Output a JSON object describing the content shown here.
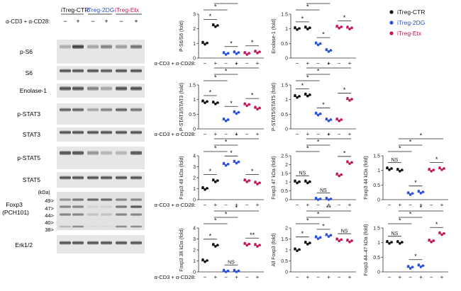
{
  "blot": {
    "groups": [
      {
        "label": "iTreg-CTR",
        "color": "#111111"
      },
      {
        "label": "iTreg-2DG",
        "color": "#2a4fd8"
      },
      {
        "label": "iTreg-Etx",
        "color": "#c2185b"
      }
    ],
    "stim_label": "α-CD3 + α-CD28:",
    "signs": [
      "−",
      "+",
      "−",
      "+",
      "−",
      "+"
    ],
    "bands": [
      "p-S6",
      "S6",
      "Enolase-1",
      "p-STAT3",
      "STAT3",
      "p-STAT5",
      "STAT5",
      "Foxp3 (PCH101)",
      "Erk1/2"
    ],
    "foxp3_sub": "(PCH101)",
    "kda_label": "(kDa)",
    "kda_marks": [
      "49>",
      "47>",
      "44>",
      "40>",
      "38>"
    ]
  },
  "legend": {
    "entries": [
      {
        "label": "iTreg-CTR",
        "color": "#111111"
      },
      {
        "label": "iTreg-2DG",
        "color": "#2a4fd8"
      },
      {
        "label": "iTreg-Etx",
        "color": "#c2185b"
      }
    ]
  },
  "chart_data": [
    {
      "type": "scatter",
      "ylabel": "P-S6/S6 (fold)",
      "ylim": [
        0,
        3
      ],
      "yticks": [
        0,
        1,
        2,
        3
      ],
      "xlabel": "α-CD3 + α-CD28:",
      "x_signs": [
        "−",
        "+",
        "−",
        "+",
        "−",
        "+"
      ],
      "means": [
        1.0,
        2.2,
        0.3,
        0.35,
        0.3,
        0.4
      ],
      "sig": [
        {
          "a": 0,
          "b": 1,
          "label": "*"
        },
        {
          "a": 2,
          "b": 3,
          "label": "*"
        },
        {
          "a": 4,
          "b": 5,
          "label": "*"
        },
        {
          "a": 0,
          "b": 2,
          "label": "*"
        },
        {
          "a": 1,
          "b": 3,
          "label": "*"
        },
        {
          "a": 1,
          "b": 5,
          "label": "*"
        }
      ]
    },
    {
      "type": "scatter",
      "ylabel": "Enolase-1 (fold)",
      "ylim": [
        0,
        1.5
      ],
      "yticks": [
        0,
        0.5,
        1.0,
        1.5
      ],
      "xlabel": "",
      "x_signs": [
        "−",
        "+",
        "−",
        "+",
        "−",
        "+"
      ],
      "means": [
        1.0,
        1.02,
        0.48,
        0.25,
        1.05,
        1.02
      ],
      "sig": [
        {
          "a": 0,
          "b": 1,
          "label": "*"
        },
        {
          "a": 2,
          "b": 3,
          "label": "*"
        },
        {
          "a": 4,
          "b": 5,
          "label": "*"
        },
        {
          "a": 0,
          "b": 2,
          "label": "*"
        },
        {
          "a": 1,
          "b": 3,
          "label": "*"
        },
        {
          "a": 0,
          "b": 4,
          "label": "NS"
        }
      ]
    },
    {
      "type": "scatter",
      "ylabel": "P-STAT3/STAT3 (fold)",
      "ylim": [
        0,
        1.5
      ],
      "yticks": [
        0,
        0.5,
        1.0,
        1.5
      ],
      "xlabel": "α-CD3 + α-CD28:",
      "x_signs": [
        "−",
        "+",
        "−",
        "+",
        "−",
        "+"
      ],
      "means": [
        0.92,
        0.88,
        0.3,
        0.55,
        0.82,
        0.7
      ],
      "sig": [
        {
          "a": 0,
          "b": 1,
          "label": "*"
        },
        {
          "a": 2,
          "b": 3,
          "label": "*"
        },
        {
          "a": 4,
          "b": 5,
          "label": "*"
        },
        {
          "a": 0,
          "b": 2,
          "label": "*"
        },
        {
          "a": 1,
          "b": 3,
          "label": "*"
        },
        {
          "a": 1,
          "b": 5,
          "label": "*"
        }
      ]
    },
    {
      "type": "scatter",
      "ylabel": "P-STAT5/STAT5 (fold)",
      "ylim": [
        0,
        1.5
      ],
      "yticks": [
        0,
        0.5,
        1.0,
        1.5
      ],
      "xlabel": "",
      "x_signs": [
        "−",
        "+",
        "−",
        "+",
        "−",
        "+"
      ],
      "means": [
        1.1,
        1.15,
        0.5,
        0.3,
        0.3,
        1.0
      ],
      "sig": [
        {
          "a": 0,
          "b": 1,
          "label": "*"
        },
        {
          "a": 2,
          "b": 3,
          "label": "*"
        },
        {
          "a": 4,
          "b": 5,
          "label": "*"
        },
        {
          "a": 0,
          "b": 2,
          "label": "*"
        },
        {
          "a": 1,
          "b": 3,
          "label": "*"
        },
        {
          "a": 1,
          "b": 5,
          "label": "*"
        }
      ]
    },
    {
      "type": "scatter",
      "ylabel": "Foxp3 49 kDa (fold)",
      "ylim": [
        0,
        4
      ],
      "yticks": [
        0,
        1,
        2,
        3,
        4
      ],
      "xlabel": "α-CD3 + α-CD28:",
      "x_signs": [
        "−",
        "+",
        "−",
        "+",
        "−",
        "+"
      ],
      "means": [
        1.0,
        1.7,
        3.2,
        3.4,
        1.7,
        1.5
      ],
      "sig": [
        {
          "a": 0,
          "b": 1,
          "label": "*"
        },
        {
          "a": 2,
          "b": 3,
          "label": "*"
        },
        {
          "a": 4,
          "b": 5,
          "label": "*"
        },
        {
          "a": 0,
          "b": 2,
          "label": "*"
        },
        {
          "a": 1,
          "b": 3,
          "label": "*"
        },
        {
          "a": 1,
          "b": 5,
          "label": "*"
        }
      ]
    },
    {
      "type": "scatter",
      "ylabel": "Foxp3 47 kDa (fold)",
      "ylim": [
        0,
        2.5
      ],
      "yticks": [
        0,
        0.5,
        1.0,
        1.5,
        2.0,
        2.5
      ],
      "xlabel": "",
      "x_signs": [
        "−",
        "+",
        "−",
        "+",
        "−",
        "+"
      ],
      "means": [
        1.0,
        1.0,
        0.02,
        0.02,
        1.4,
        2.1
      ],
      "sig": [
        {
          "a": 0,
          "b": 1,
          "label": "NS"
        },
        {
          "a": 2,
          "b": 3,
          "label": "NS"
        },
        {
          "a": 4,
          "b": 5,
          "label": "*"
        },
        {
          "a": 0,
          "b": 2,
          "label": "*"
        },
        {
          "a": 1,
          "b": 3,
          "label": "*"
        },
        {
          "a": 1,
          "b": 5,
          "label": "*"
        }
      ]
    },
    {
      "type": "scatter",
      "ylabel": "Foxp3 44 kDa (fold)",
      "ylim": [
        0,
        1.5
      ],
      "yticks": [
        0,
        0.5,
        1.0,
        1.5
      ],
      "xlabel": "",
      "x_signs": [
        "−",
        "+",
        "−",
        "+",
        "−",
        "+"
      ],
      "means": [
        1.05,
        1.0,
        0.2,
        0.25,
        1.0,
        1.05
      ],
      "sig": [
        {
          "a": 0,
          "b": 1,
          "label": "NS"
        },
        {
          "a": 2,
          "b": 3,
          "label": "*"
        },
        {
          "a": 4,
          "b": 5,
          "label": "*"
        },
        {
          "a": 0,
          "b": 2,
          "label": "*"
        },
        {
          "a": 1,
          "b": 3,
          "label": "*"
        },
        {
          "a": 1,
          "b": 5,
          "label": "*"
        }
      ]
    },
    {
      "type": "scatter",
      "ylabel": "Foxp3 38 kDa (fold)",
      "ylim": [
        0,
        4
      ],
      "yticks": [
        0,
        1,
        2,
        3,
        4
      ],
      "xlabel": "α-CD3 + α-CD28:",
      "x_signs": [
        "−",
        "+",
        "−",
        "+",
        "−",
        "+"
      ],
      "means": [
        1.0,
        2.4,
        0.05,
        0.05,
        2.5,
        2.4
      ],
      "sig": [
        {
          "a": 0,
          "b": 1,
          "label": "*"
        },
        {
          "a": 2,
          "b": 3,
          "label": "NS"
        },
        {
          "a": 4,
          "b": 5,
          "label": "**"
        },
        {
          "a": 0,
          "b": 2,
          "label": "*"
        },
        {
          "a": 1,
          "b": 3,
          "label": "*"
        },
        {
          "a": 1,
          "b": 5,
          "label": "*"
        }
      ]
    },
    {
      "type": "scatter",
      "ylabel": "All Foxp3 (fold)",
      "ylim": [
        0,
        2.0
      ],
      "yticks": [
        0,
        0.5,
        1.0,
        1.5,
        2.0
      ],
      "xlabel": "",
      "x_signs": [
        "−",
        "+",
        "−",
        "+",
        "−",
        "+"
      ],
      "means": [
        1.0,
        1.3,
        1.55,
        1.65,
        1.45,
        1.4
      ],
      "sig": [
        {
          "a": 0,
          "b": 1,
          "label": "*"
        },
        {
          "a": 2,
          "b": 3,
          "label": "*"
        },
        {
          "a": 4,
          "b": 5,
          "label": "NS"
        },
        {
          "a": 0,
          "b": 2,
          "label": "*"
        },
        {
          "a": 1,
          "b": 3,
          "label": "*"
        },
        {
          "a": 1,
          "b": 5,
          "label": "**"
        }
      ]
    },
    {
      "type": "scatter",
      "ylabel": "Foxp3 44–47 kDa (fold)",
      "ylim": [
        0,
        1.5
      ],
      "yticks": [
        0,
        0.5,
        1.0,
        1.5
      ],
      "xlabel": "",
      "x_signs": [
        "−",
        "+",
        "−",
        "+",
        "−",
        "+"
      ],
      "means": [
        1.0,
        1.0,
        0.15,
        0.2,
        1.05,
        1.3
      ],
      "sig": [
        {
          "a": 0,
          "b": 1,
          "label": "NS"
        },
        {
          "a": 2,
          "b": 3,
          "label": "*"
        },
        {
          "a": 4,
          "b": 5,
          "label": "*"
        },
        {
          "a": 0,
          "b": 2,
          "label": "*"
        },
        {
          "a": 1,
          "b": 3,
          "label": "*"
        },
        {
          "a": 1,
          "b": 5,
          "label": "*"
        }
      ]
    }
  ]
}
